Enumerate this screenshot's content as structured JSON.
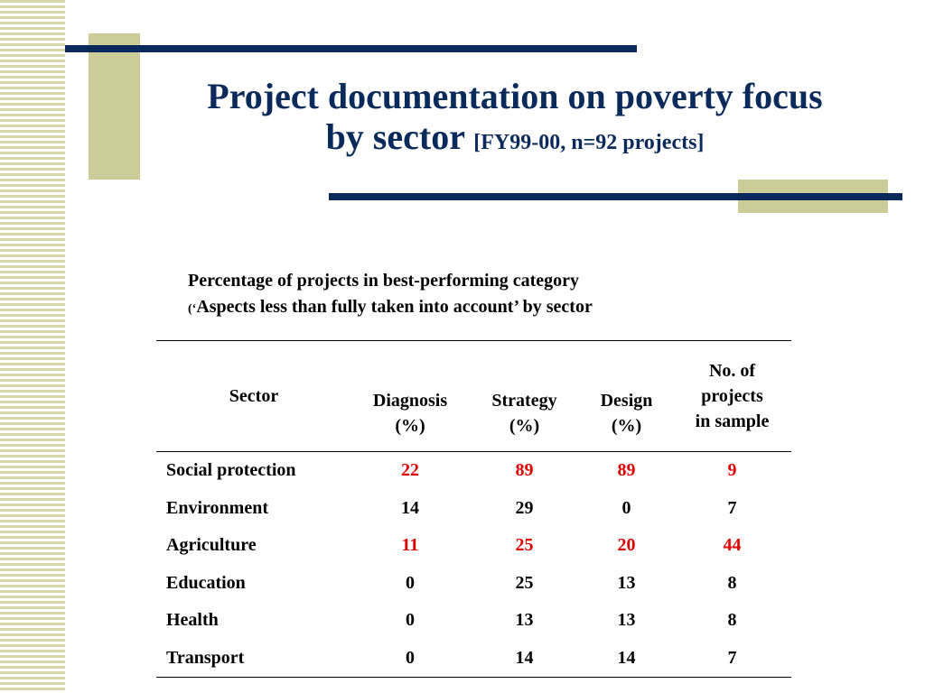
{
  "title": {
    "line1": "Project documentation on poverty focus",
    "line2": "by sector",
    "subtitle": "[FY99-00, n=92 projects]"
  },
  "caption": {
    "line1": "Percentage of projects in best-performing category",
    "line2_open": "(‘",
    "line2": "Aspects less than fully taken into account’ by sector"
  },
  "table": {
    "headers": {
      "sector": "Sector",
      "diagnosis": "Diagnosis",
      "strategy": "Strategy",
      "design": "Design",
      "unit": "(%)",
      "sample_l1": "No. of",
      "sample_l2": "projects",
      "sample_l3": "in sample"
    },
    "rows": [
      {
        "sector": "Social protection",
        "diagnosis": "22",
        "strategy": "89",
        "design": "89",
        "sample": "9",
        "highlight": true
      },
      {
        "sector": "Environment",
        "diagnosis": "14",
        "strategy": "29",
        "design": "0",
        "sample": "7",
        "highlight": false
      },
      {
        "sector": "Agriculture",
        "diagnosis": "11",
        "strategy": "25",
        "design": "20",
        "sample": "44",
        "highlight": true
      },
      {
        "sector": "Education",
        "diagnosis": "0",
        "strategy": "25",
        "design": "13",
        "sample": "8",
        "highlight": false
      },
      {
        "sector": "Health",
        "diagnosis": "0",
        "strategy": "13",
        "design": "13",
        "sample": "8",
        "highlight": false
      },
      {
        "sector": "Transport",
        "diagnosis": "0",
        "strategy": "14",
        "design": "14",
        "sample": "7",
        "highlight": false
      }
    ]
  },
  "colors": {
    "title": "#0a2a5c",
    "accent_bar": "#0a2a5c",
    "olive": "#cccc99",
    "highlight": "#e00000"
  }
}
